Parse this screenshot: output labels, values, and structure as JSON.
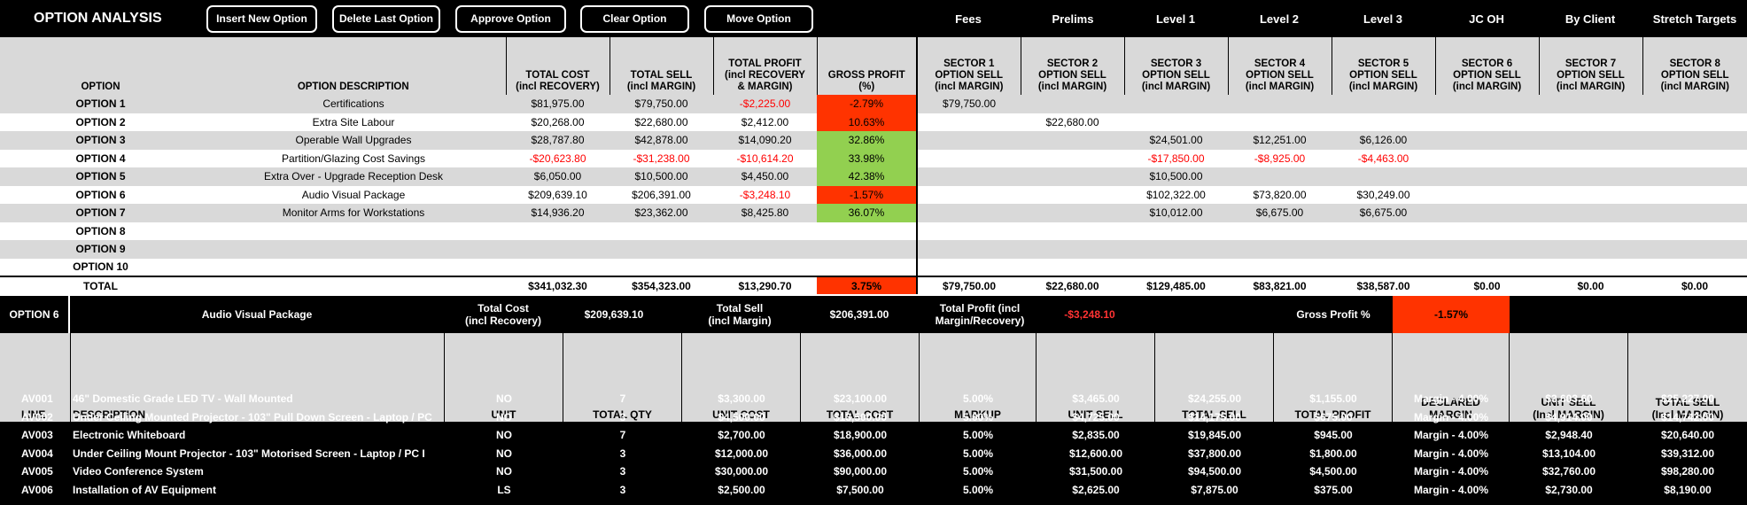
{
  "app_title": "OPTION ANALYSIS",
  "toolbar": {
    "buttons": [
      "Insert New Option",
      "Delete Last Option",
      "Approve Option",
      "Clear Option",
      "Move Option"
    ],
    "links": [
      "Fees",
      "Prelims",
      "Level 1",
      "Level 2",
      "Level 3",
      "JC OH",
      "By Client",
      "Stretch Targets"
    ]
  },
  "summary": {
    "headers": {
      "option": "OPTION",
      "description": "OPTION DESCRIPTION",
      "total_cost": [
        "TOTAL COST",
        "(incl RECOVERY)"
      ],
      "total_sell": [
        "TOTAL SELL",
        "(incl MARGIN)"
      ],
      "total_profit": [
        "TOTAL PROFIT",
        "(incl RECOVERY",
        "& MARGIN)"
      ],
      "gross_profit": [
        "GROSS PROFIT",
        "(%)"
      ],
      "sectors": [
        [
          "SECTOR 1",
          "OPTION SELL",
          "(incl MARGIN)"
        ],
        [
          "SECTOR 2",
          "OPTION SELL",
          "(incl MARGIN)"
        ],
        [
          "SECTOR 3",
          "OPTION SELL",
          "(incl MARGIN)"
        ],
        [
          "SECTOR 4",
          "OPTION SELL",
          "(incl MARGIN)"
        ],
        [
          "SECTOR 5",
          "OPTION SELL",
          "(incl MARGIN)"
        ],
        [
          "SECTOR 6",
          "OPTION SELL",
          "(incl MARGIN)"
        ],
        [
          "SECTOR 7",
          "OPTION SELL",
          "(incl MARGIN)"
        ],
        [
          "SECTOR 8",
          "OPTION SELL",
          "(incl MARGIN)"
        ]
      ]
    },
    "rows": [
      {
        "option": "OPTION 1",
        "description": "Certifications",
        "cost": "$81,975.00",
        "sell": "$79,750.00",
        "profit": "-$2,225.00",
        "gp": "-2.79%",
        "gp_color": "red",
        "sectors": [
          "$79,750.00",
          "",
          "",
          "",
          "",
          "",
          "",
          ""
        ]
      },
      {
        "option": "OPTION 2",
        "description": "Extra Site Labour",
        "cost": "$20,268.00",
        "sell": "$22,680.00",
        "profit": "$2,412.00",
        "gp": "10.63%",
        "gp_color": "red",
        "sectors": [
          "",
          "$22,680.00",
          "",
          "",
          "",
          "",
          "",
          ""
        ]
      },
      {
        "option": "OPTION 3",
        "description": "Operable Wall Upgrades",
        "cost": "$28,787.80",
        "sell": "$42,878.00",
        "profit": "$14,090.20",
        "gp": "32.86%",
        "gp_color": "green",
        "sectors": [
          "",
          "",
          "$24,501.00",
          "$12,251.00",
          "$6,126.00",
          "",
          "",
          ""
        ]
      },
      {
        "option": "OPTION 4",
        "description": "Partition/Glazing Cost Savings",
        "cost": "-$20,623.80",
        "sell": "-$31,238.00",
        "profit": "-$10,614.20",
        "gp": "33.98%",
        "gp_color": "green",
        "sectors": [
          "",
          "",
          "-$17,850.00",
          "-$8,925.00",
          "-$4,463.00",
          "",
          "",
          ""
        ]
      },
      {
        "option": "OPTION 5",
        "description": "Extra Over - Upgrade Reception Desk",
        "cost": "$6,050.00",
        "sell": "$10,500.00",
        "profit": "$4,450.00",
        "gp": "42.38%",
        "gp_color": "green",
        "sectors": [
          "",
          "",
          "$10,500.00",
          "",
          "",
          "",
          "",
          ""
        ]
      },
      {
        "option": "OPTION 6",
        "description": "Audio Visual Package",
        "cost": "$209,639.10",
        "sell": "$206,391.00",
        "profit": "-$3,248.10",
        "gp": "-1.57%",
        "gp_color": "red",
        "sectors": [
          "",
          "",
          "$102,322.00",
          "$73,820.00",
          "$30,249.00",
          "",
          "",
          ""
        ]
      },
      {
        "option": "OPTION 7",
        "description": "Monitor Arms for Workstations",
        "cost": "$14,936.20",
        "sell": "$23,362.00",
        "profit": "$8,425.80",
        "gp": "36.07%",
        "gp_color": "green",
        "sectors": [
          "",
          "",
          "$10,012.00",
          "$6,675.00",
          "$6,675.00",
          "",
          "",
          ""
        ]
      },
      {
        "option": "OPTION 8",
        "description": "",
        "cost": "",
        "sell": "",
        "profit": "",
        "gp": "",
        "gp_color": "",
        "sectors": [
          "",
          "",
          "",
          "",
          "",
          "",
          "",
          ""
        ]
      },
      {
        "option": "OPTION 9",
        "description": "",
        "cost": "",
        "sell": "",
        "profit": "",
        "gp": "",
        "gp_color": "",
        "sectors": [
          "",
          "",
          "",
          "",
          "",
          "",
          "",
          ""
        ]
      },
      {
        "option": "OPTION 10",
        "description": "",
        "cost": "",
        "sell": "",
        "profit": "",
        "gp": "",
        "gp_color": "",
        "sectors": [
          "",
          "",
          "",
          "",
          "",
          "",
          "",
          ""
        ]
      }
    ],
    "total": {
      "label": "TOTAL",
      "cost": "$341,032.30",
      "sell": "$354,323.00",
      "profit": "$13,290.70",
      "gp": "3.75%",
      "sectors": [
        "$79,750.00",
        "$22,680.00",
        "$129,485.00",
        "$83,821.00",
        "$38,587.00",
        "$0.00",
        "$0.00",
        "$0.00"
      ]
    }
  },
  "detail": {
    "option_label": "OPTION 6",
    "option_name": "Audio Visual Package",
    "total_cost_label": [
      "Total Cost",
      "(incl Recovery)"
    ],
    "total_cost_value": "$209,639.10",
    "total_sell_label": [
      "Total Sell",
      "(incl Margin)"
    ],
    "total_sell_value": "$206,391.00",
    "total_profit_label": [
      "Total Profit (incl",
      "Margin/Recovery)"
    ],
    "total_profit_value": "-$3,248.10",
    "gp_label": "Gross Profit %",
    "gp_value": "-1.57%",
    "headers": [
      "LINE",
      "DESCRIPTION",
      "UNIT",
      "TOTAL QTY",
      "UNIT COST",
      "TOTAL COST",
      "MARKUP",
      "UNIT SELL",
      "TOTAL SELL",
      "TOTAL PROFIT",
      [
        "DECLARED",
        "MARGIN"
      ],
      [
        "UNIT SELL",
        "(Incl MARGIN)"
      ],
      [
        "TOTAL SELL",
        "(Incl MARGIN)"
      ]
    ],
    "lines": [
      {
        "line": "AV001",
        "description": "46\" Domestic Grade LED TV - Wall Mounted",
        "unit": "NO",
        "qty": "7",
        "unit_cost": "$3,300.00",
        "total_cost": "$23,100.00",
        "markup": "5.00%",
        "unit_sell": "$3,465.00",
        "total_sell": "$24,255.00",
        "total_profit": "$1,155.00",
        "margin": "Margin - 4.00%",
        "unit_sell_m": "$3,603.60",
        "total_sell_m": "$25,227.00"
      },
      {
        "line": "AV002",
        "description": "Under Ceiling Mounted Projector - 103\" Pull Down Screen - Laptop / PC",
        "unit": "NO",
        "qty": "3",
        "unit_cost": "$4,500.00",
        "total_cost": "$13,500.00",
        "markup": "5.00%",
        "unit_sell": "$4,725.00",
        "total_sell": "$14,175.00",
        "total_profit": "$675.00",
        "margin": "Margin - 4.00%",
        "unit_sell_m": "$4,914.00",
        "total_sell_m": "$14,742.00"
      },
      {
        "line": "AV003",
        "description": "Electronic Whiteboard",
        "unit": "NO",
        "qty": "7",
        "unit_cost": "$2,700.00",
        "total_cost": "$18,900.00",
        "markup": "5.00%",
        "unit_sell": "$2,835.00",
        "total_sell": "$19,845.00",
        "total_profit": "$945.00",
        "margin": "Margin - 4.00%",
        "unit_sell_m": "$2,948.40",
        "total_sell_m": "$20,640.00"
      },
      {
        "line": "AV004",
        "description": "Under Ceiling Mount Projector - 103\" Motorised Screen - Laptop / PC I",
        "unit": "NO",
        "qty": "3",
        "unit_cost": "$12,000.00",
        "total_cost": "$36,000.00",
        "markup": "5.00%",
        "unit_sell": "$12,600.00",
        "total_sell": "$37,800.00",
        "total_profit": "$1,800.00",
        "margin": "Margin - 4.00%",
        "unit_sell_m": "$13,104.00",
        "total_sell_m": "$39,312.00"
      },
      {
        "line": "AV005",
        "description": "Video Conference System",
        "unit": "NO",
        "qty": "3",
        "unit_cost": "$30,000.00",
        "total_cost": "$90,000.00",
        "markup": "5.00%",
        "unit_sell": "$31,500.00",
        "total_sell": "$94,500.00",
        "total_profit": "$4,500.00",
        "margin": "Margin - 4.00%",
        "unit_sell_m": "$32,760.00",
        "total_sell_m": "$98,280.00"
      },
      {
        "line": "AV006",
        "description": "Installation of AV Equipment",
        "unit": "LS",
        "qty": "3",
        "unit_cost": "$2,500.00",
        "total_cost": "$7,500.00",
        "markup": "5.00%",
        "unit_sell": "$2,625.00",
        "total_sell": "$7,875.00",
        "total_profit": "$375.00",
        "margin": "Margin - 4.00%",
        "unit_sell_m": "$2,730.00",
        "total_sell_m": "$8,190.00"
      }
    ]
  }
}
